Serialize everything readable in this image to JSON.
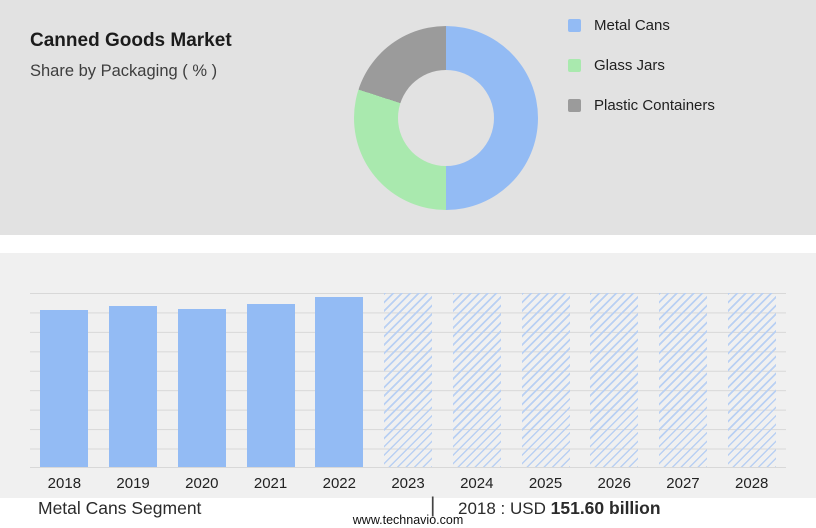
{
  "header": {
    "title": "Canned Goods Market",
    "subtitle": "Share by Packaging ( % )"
  },
  "colors": {
    "accent_blue": "#93BBF4",
    "accent_green": "#A9E9AE",
    "accent_gray": "#9B9B9B",
    "panel_top_bg": "#E2E2E2",
    "panel_bottom_bg": "#F0F0F0",
    "gridline": "#D8D8D8",
    "hatch_line": "#B9D0F3",
    "text_dark": "#1F1F1F"
  },
  "chart_data": [
    {
      "type": "pie",
      "donut": true,
      "title": "Share by Packaging ( % )",
      "labels": [
        "Metal Cans",
        "Glass Jars",
        "Plastic Containers"
      ],
      "values": [
        50,
        30,
        20
      ],
      "colors": [
        "#93BBF4",
        "#A9E9AE",
        "#9B9B9B"
      ],
      "legend_position": "right"
    },
    {
      "type": "bar",
      "categories": [
        "2018",
        "2019",
        "2020",
        "2021",
        "2022",
        "2023",
        "2024",
        "2025",
        "2026",
        "2027",
        "2028"
      ],
      "series": [
        {
          "name": "Metal Cans segment size (USD billion)",
          "values": [
            151.6,
            155.4,
            152.6,
            157.3,
            164.0,
            null,
            null,
            null,
            null,
            null,
            null
          ]
        }
      ],
      "relative_heights_pct": [
        90.3,
        92.6,
        90.9,
        93.7,
        97.7,
        100,
        100,
        100,
        100,
        100,
        100
      ],
      "historical_count": 5,
      "forecast_style": "hatched",
      "grid": true,
      "legend_position": "none"
    }
  ],
  "caption": {
    "segment": "Metal Cans Segment",
    "divider": "|",
    "value_prefix": "2018 : USD",
    "value_bold": "151.60 billion"
  },
  "footer": {
    "website": "www.technavio.com"
  }
}
